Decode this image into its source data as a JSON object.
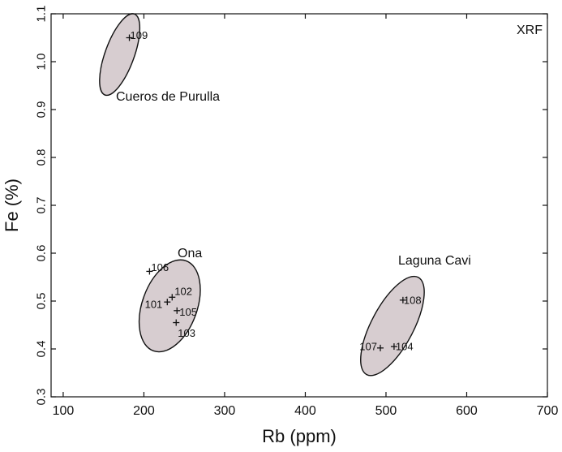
{
  "chart_data": {
    "type": "scatter",
    "xlabel": "Rb (ppm)",
    "ylabel": "Fe (%)",
    "xlim": [
      85,
      700
    ],
    "ylim": [
      0.3,
      1.1
    ],
    "x_ticks": [
      100,
      200,
      300,
      400,
      500,
      600,
      700
    ],
    "y_ticks": [
      0.3,
      0.4,
      0.5,
      0.6,
      0.7,
      0.8,
      0.9,
      1.0,
      1.1
    ],
    "x_tick_labels": [
      "100",
      "200",
      "300",
      "400",
      "500",
      "600",
      "700"
    ],
    "y_tick_labels": [
      "0.3",
      "0.4",
      "0.5",
      "0.6",
      "0.7",
      "0.8",
      "0.9",
      "1.0",
      "1.1"
    ],
    "annotation": "XRF",
    "marker": "+",
    "fill_color": "#d7cdd0",
    "points": [
      {
        "label": "109",
        "x": 182,
        "y": 1.05
      },
      {
        "label": "106",
        "x": 207,
        "y": 0.562
      },
      {
        "label": "102",
        "x": 235,
        "y": 0.508
      },
      {
        "label": "101",
        "x": 229,
        "y": 0.498
      },
      {
        "label": "105",
        "x": 241,
        "y": 0.48
      },
      {
        "label": "103",
        "x": 240,
        "y": 0.455
      },
      {
        "label": "108",
        "x": 521,
        "y": 0.502
      },
      {
        "label": "107",
        "x": 493,
        "y": 0.402
      },
      {
        "label": "104",
        "x": 510,
        "y": 0.405
      }
    ],
    "groups": [
      {
        "name": "Cueros de Purulla",
        "cx": 170,
        "cy": 1.015,
        "rx": 18,
        "ry": 0.09,
        "rotation": 20
      },
      {
        "name": "Ona",
        "cx": 232,
        "cy": 0.49,
        "rx": 34,
        "ry": 0.1,
        "rotation": 20
      },
      {
        "name": "Laguna Cavi",
        "cx": 508,
        "cy": 0.448,
        "rx": 26,
        "ry": 0.115,
        "rotation": 28
      }
    ]
  }
}
